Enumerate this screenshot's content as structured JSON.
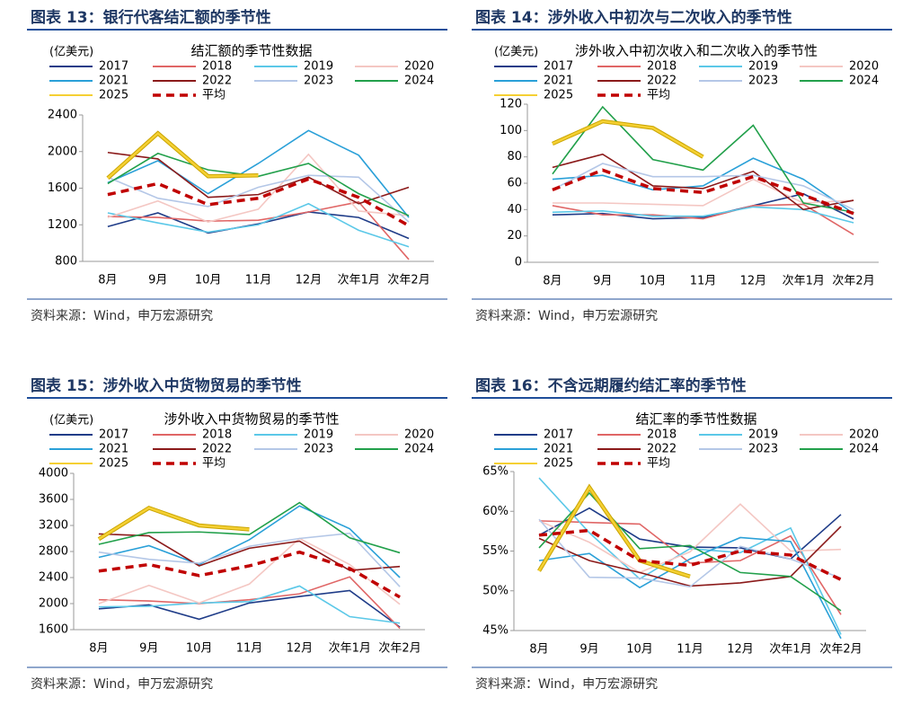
{
  "chart_data": [
    {
      "type": "line",
      "figure_title": "图表 13：银行代客结汇额的季节性",
      "title": "结汇额的季节性数据",
      "y_label": "(亿美元)",
      "source": "资料来源：Wind，申万宏源研究",
      "categories": [
        "8月",
        "9月",
        "10月",
        "11月",
        "12月",
        "次年1月",
        "次年2月"
      ],
      "ylim": [
        800,
        2400
      ],
      "yticks": [
        800,
        1200,
        1600,
        2000,
        2400
      ],
      "grid": false,
      "series": [
        {
          "name": "2017",
          "color": "#1f3c88",
          "values": [
            1180,
            1330,
            1110,
            1210,
            1340,
            1280,
            1050
          ]
        },
        {
          "name": "2018",
          "color": "#e06666",
          "values": [
            1290,
            1280,
            1240,
            1250,
            1340,
            1450,
            820
          ]
        },
        {
          "name": "2019",
          "color": "#5bc8e8",
          "values": [
            1330,
            1220,
            1120,
            1200,
            1430,
            1140,
            960
          ]
        },
        {
          "name": "2020",
          "color": "#f4c7c3",
          "values": [
            1280,
            1460,
            1230,
            1370,
            1970,
            1350,
            1300
          ]
        },
        {
          "name": "2021",
          "color": "#2aa0d8",
          "values": [
            1660,
            1900,
            1540,
            1870,
            2230,
            1960,
            1280
          ]
        },
        {
          "name": "2022",
          "color": "#8b1a1a",
          "values": [
            1990,
            1920,
            1500,
            1530,
            1720,
            1430,
            1610
          ]
        },
        {
          "name": "2023",
          "color": "#b4c7e7",
          "values": [
            1720,
            1490,
            1400,
            1610,
            1740,
            1720,
            1230
          ]
        },
        {
          "name": "2024",
          "color": "#22a04b",
          "values": [
            1650,
            1980,
            1800,
            1730,
            1870,
            1540,
            1300
          ]
        },
        {
          "name": "2025",
          "color": "#f5d033",
          "values": [
            1710,
            2200,
            1730,
            1740,
            null,
            null,
            null
          ]
        },
        {
          "name": "平均",
          "color": "#c00000",
          "dashed": true,
          "values": [
            1530,
            1650,
            1420,
            1490,
            1700,
            1500,
            1190
          ]
        }
      ]
    },
    {
      "type": "line",
      "figure_title": "图表 14：涉外收入中初次与二次收入的季节性",
      "title": "涉外收入中初次收入和二次收入的季节性",
      "y_label": "(亿美元)",
      "source": "资料来源：Wind，申万宏源研究",
      "categories": [
        "8月",
        "9月",
        "10月",
        "11月",
        "12月",
        "次年1月",
        "次年2月"
      ],
      "ylim": [
        0,
        120
      ],
      "yticks": [
        0,
        20,
        40,
        60,
        80,
        100,
        120
      ],
      "grid": false,
      "series": [
        {
          "name": "2017",
          "color": "#1f3c88",
          "values": [
            36,
            37,
            33,
            34,
            43,
            52,
            33
          ]
        },
        {
          "name": "2018",
          "color": "#e06666",
          "values": [
            43,
            36,
            36,
            33,
            43,
            44,
            21
          ]
        },
        {
          "name": "2019",
          "color": "#5bc8e8",
          "values": [
            38,
            39,
            35,
            35,
            42,
            40,
            30
          ]
        },
        {
          "name": "2020",
          "color": "#f4c7c3",
          "values": [
            45,
            45,
            44,
            43,
            63,
            45,
            47
          ]
        },
        {
          "name": "2021",
          "color": "#2aa0d8",
          "values": [
            63,
            66,
            55,
            58,
            79,
            63,
            37
          ]
        },
        {
          "name": "2022",
          "color": "#8b1a1a",
          "values": [
            72,
            82,
            58,
            56,
            69,
            40,
            47
          ]
        },
        {
          "name": "2023",
          "color": "#b4c7e7",
          "values": [
            55,
            75,
            65,
            65,
            66,
            58,
            40
          ]
        },
        {
          "name": "2024",
          "color": "#22a04b",
          "values": [
            67,
            118,
            78,
            70,
            104,
            45,
            38
          ]
        },
        {
          "name": "2025",
          "color": "#f5d033",
          "values": [
            90,
            107,
            102,
            80,
            null,
            null,
            null
          ]
        },
        {
          "name": "平均",
          "color": "#c00000",
          "dashed": true,
          "values": [
            55,
            70,
            56,
            53,
            65,
            51,
            37
          ]
        }
      ]
    },
    {
      "type": "line",
      "figure_title": "图表 15：涉外收入中货物贸易的季节性",
      "title": "涉外收入中货物贸易的季节性",
      "y_label": "(亿美元)",
      "source": "资料来源：Wind，申万宏源研究",
      "categories": [
        "8月",
        "9月",
        "10月",
        "11月",
        "12月",
        "次年1月",
        "次年2月"
      ],
      "ylim": [
        1600,
        4000
      ],
      "yticks": [
        1600,
        2000,
        2400,
        2800,
        3200,
        3600,
        4000
      ],
      "grid": false,
      "series": [
        {
          "name": "2017",
          "color": "#1f3c88",
          "values": [
            1920,
            1980,
            1760,
            2010,
            2110,
            2200,
            1640
          ]
        },
        {
          "name": "2018",
          "color": "#e06666",
          "values": [
            2060,
            2040,
            2000,
            2060,
            2150,
            2410,
            1620
          ]
        },
        {
          "name": "2019",
          "color": "#5bc8e8",
          "values": [
            1950,
            1960,
            2010,
            2030,
            2270,
            1800,
            1700
          ]
        },
        {
          "name": "2020",
          "color": "#f4c7c3",
          "values": [
            2000,
            2280,
            2010,
            2300,
            3000,
            2600,
            1990
          ]
        },
        {
          "name": "2021",
          "color": "#2aa0d8",
          "values": [
            2710,
            2890,
            2600,
            2980,
            3500,
            3150,
            2400
          ]
        },
        {
          "name": "2022",
          "color": "#8b1a1a",
          "values": [
            3070,
            3040,
            2580,
            2850,
            2960,
            2510,
            2570
          ]
        },
        {
          "name": "2023",
          "color": "#b4c7e7",
          "values": [
            2790,
            2680,
            2620,
            2880,
            3000,
            3080,
            2260
          ]
        },
        {
          "name": "2024",
          "color": "#22a04b",
          "values": [
            2910,
            3090,
            3100,
            3060,
            3550,
            3010,
            2780
          ]
        },
        {
          "name": "2025",
          "color": "#f5d033",
          "values": [
            2990,
            3470,
            3200,
            3140,
            null,
            null,
            null
          ]
        },
        {
          "name": "平均",
          "color": "#c00000",
          "dashed": true,
          "values": [
            2500,
            2600,
            2430,
            2580,
            2790,
            2540,
            2100
          ]
        }
      ]
    },
    {
      "type": "line",
      "figure_title": "图表 16：不含远期履约结汇率的季节性",
      "title": "结汇率的季节性数据",
      "source": "资料来源：Wind，申万宏源研究",
      "categories": [
        "8月",
        "9月",
        "10月",
        "11月",
        "12月",
        "次年1月",
        "次年2月"
      ],
      "ylim": [
        45,
        65
      ],
      "yticks": [
        {
          "value": 45,
          "label": "45%"
        },
        {
          "value": 50,
          "label": "50%"
        },
        {
          "value": 55,
          "label": "55%"
        },
        {
          "value": 60,
          "label": "60%"
        },
        {
          "value": 65,
          "label": "65%"
        }
      ],
      "grid": false,
      "series": [
        {
          "name": "2017",
          "color": "#1f3c88",
          "values": [
            57.0,
            60.4,
            56.5,
            55.5,
            55.4,
            54.0,
            59.6
          ]
        },
        {
          "name": "2018",
          "color": "#e06666",
          "values": [
            58.8,
            58.6,
            58.4,
            53.5,
            53.8,
            56.9,
            47.0
          ]
        },
        {
          "name": "2019",
          "color": "#5bc8e8",
          "values": [
            64.2,
            57.3,
            51.5,
            55.3,
            54.8,
            57.9,
            44.5
          ]
        },
        {
          "name": "2020",
          "color": "#f4c7c3",
          "values": [
            58.8,
            56.1,
            52.3,
            54.9,
            60.9,
            55.0,
            55.2
          ]
        },
        {
          "name": "2021",
          "color": "#2aa0d8",
          "values": [
            53.8,
            54.7,
            50.4,
            54.0,
            56.7,
            56.2,
            44.0
          ]
        },
        {
          "name": "2022",
          "color": "#8b1a1a",
          "values": [
            56.6,
            53.8,
            52.3,
            50.6,
            51.0,
            51.8,
            58.1
          ]
        },
        {
          "name": "2023",
          "color": "#b4c7e7",
          "values": [
            59.0,
            51.7,
            51.6,
            50.5,
            55.6,
            54.0,
            51.6
          ]
        },
        {
          "name": "2024",
          "color": "#22a04b",
          "values": [
            55.4,
            62.3,
            55.3,
            55.7,
            52.3,
            51.8,
            47.5
          ]
        },
        {
          "name": "2025",
          "color": "#f5d033",
          "values": [
            52.5,
            63.0,
            53.8,
            51.8,
            null,
            null,
            null
          ]
        },
        {
          "name": "平均",
          "color": "#c00000",
          "dashed": true,
          "values": [
            57.0,
            57.6,
            53.8,
            53.2,
            55.0,
            54.5,
            51.4
          ]
        }
      ]
    }
  ]
}
